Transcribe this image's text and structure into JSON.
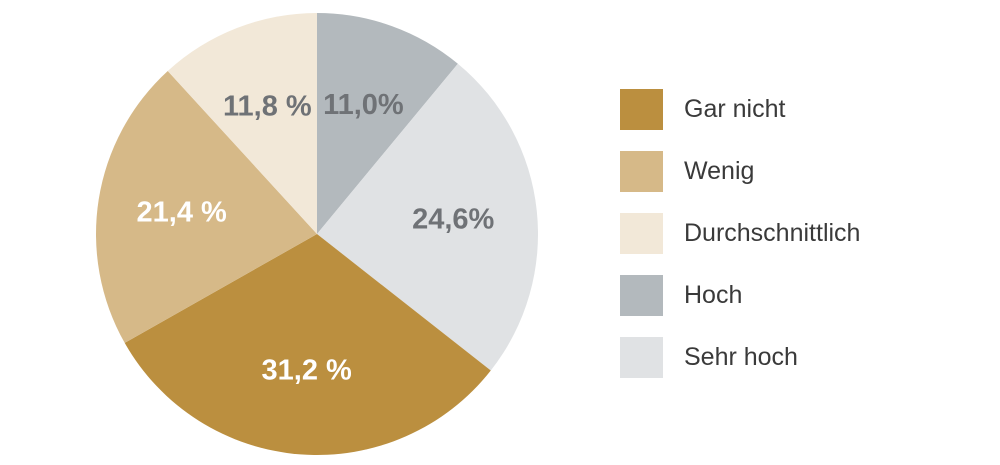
{
  "chart_data": {
    "type": "pie",
    "start_angle_deg": 0,
    "direction": "clockwise",
    "slices": [
      {
        "label": "Hoch",
        "value": 11.0,
        "display": "11,0%",
        "color": "#b3b9bd",
        "label_color": "#6f7276"
      },
      {
        "label": "Sehr hoch",
        "value": 24.6,
        "display": "24,6%",
        "color": "#e0e2e4",
        "label_color": "#6f7276"
      },
      {
        "label": "Gar nicht",
        "value": 31.2,
        "display": "31,2 %",
        "color": "#bb8f3f",
        "label_color": "#ffffff"
      },
      {
        "label": "Wenig",
        "value": 21.4,
        "display": "21,4 %",
        "color": "#d6b988",
        "label_color": "#ffffff"
      },
      {
        "label": "Durchschnittlich",
        "value": 11.8,
        "display": "11,8 %",
        "color": "#f2e8d8",
        "label_color": "#6f7276"
      }
    ],
    "legend_position": "right",
    "legend": [
      {
        "label": "Gar nicht",
        "color": "#bb8f3f"
      },
      {
        "label": "Wenig",
        "color": "#d6b988"
      },
      {
        "label": "Durchschnittlich",
        "color": "#f2e8d8"
      },
      {
        "label": "Hoch",
        "color": "#b3b9bd"
      },
      {
        "label": "Sehr hoch",
        "color": "#e0e2e4"
      }
    ]
  }
}
